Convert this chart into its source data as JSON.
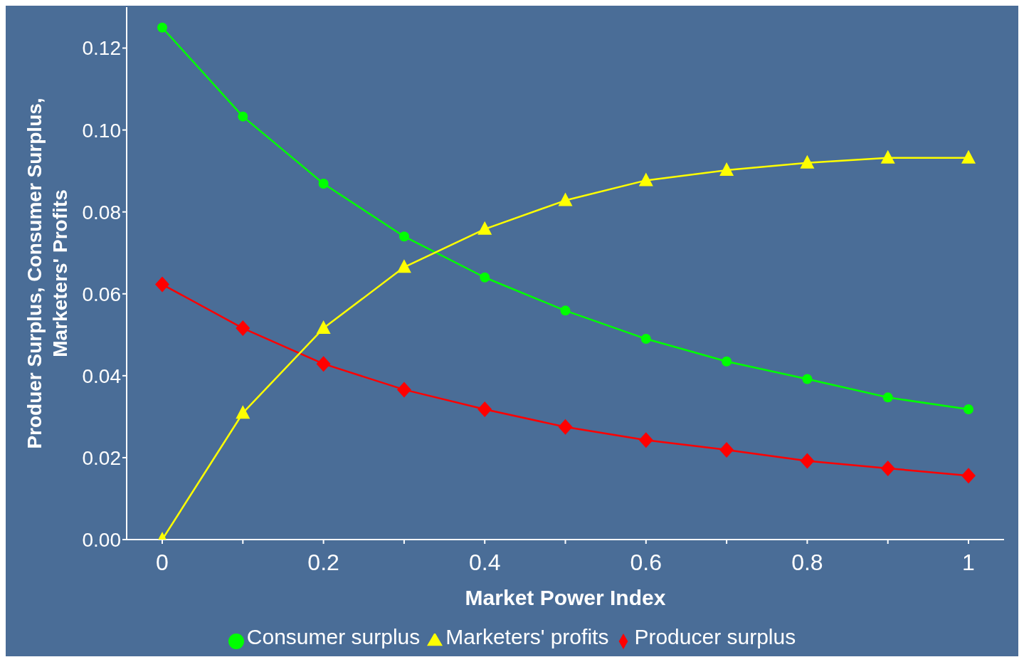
{
  "chart_data": {
    "type": "line",
    "xlabel": "Market Power Index",
    "ylabel": "Produer Surplus, Consumer Surplus,\nMarketers' Profits",
    "categories": [
      "0",
      null,
      "0.2",
      null,
      "0.4",
      null,
      "0.6",
      null,
      "0.8",
      null,
      "1"
    ],
    "ylim": [
      0,
      0.13
    ],
    "yticks": [
      {
        "value": 0,
        "label": "0.00"
      },
      0.02,
      0.04,
      0.06,
      0.08,
      {
        "value": 0.1,
        "label": "0.10"
      },
      0.12
    ],
    "grid": false,
    "legend": "bottom",
    "series": [
      {
        "name": "Producer surplus",
        "color": "#ff0000",
        "marker": "diamond",
        "values": [
          0.0623,
          0.0516,
          0.0429,
          0.0366,
          0.0318,
          0.0275,
          0.0243,
          0.0219,
          0.0192,
          0.0174,
          0.0156
        ]
      },
      {
        "name": "Consumer surplus",
        "color": "#00ff00",
        "marker": "circle",
        "values": [
          0.125,
          0.1033,
          0.0869,
          0.074,
          0.064,
          0.0559,
          0.049,
          0.0435,
          0.0392,
          0.0347,
          0.0318
        ]
      },
      {
        "name": "Marketers' profits",
        "color": "#ffff00",
        "marker": "triangle",
        "values": [
          0,
          0.0309,
          0.0516,
          0.0665,
          0.0758,
          0.0828,
          0.0877,
          0.0902,
          0.092,
          0.0932,
          0.0932
        ]
      }
    ]
  }
}
